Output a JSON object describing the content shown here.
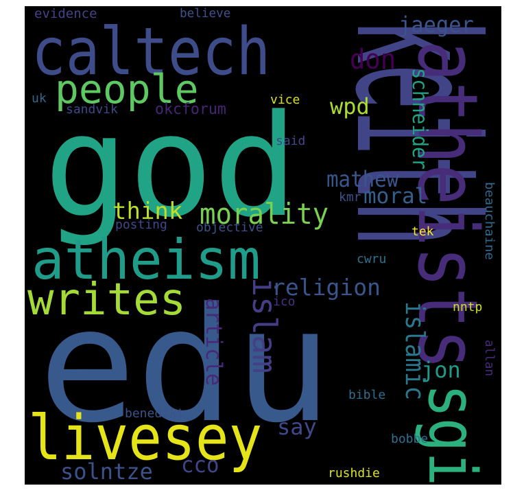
{
  "wordcloud": {
    "background_color": "#000000",
    "words": [
      {
        "text": "keith",
        "color": "#414487",
        "orientation": "vertical"
      },
      {
        "text": "god",
        "color": "#21a386",
        "orientation": "horizontal"
      },
      {
        "text": "edu",
        "color": "#38598c",
        "orientation": "horizontal"
      },
      {
        "text": "caltech",
        "color": "#3e4c8a",
        "orientation": "horizontal"
      },
      {
        "text": "sgi",
        "color": "#2cb17e",
        "orientation": "vertical"
      },
      {
        "text": "atheists",
        "color": "#472c7a",
        "orientation": "vertical"
      },
      {
        "text": "atheism",
        "color": "#1f9d8a",
        "orientation": "horizontal"
      },
      {
        "text": "livesey",
        "color": "#e5e419",
        "orientation": "horizontal"
      },
      {
        "text": "writes",
        "color": "#a5db36",
        "orientation": "horizontal"
      },
      {
        "text": "people",
        "color": "#5ec962",
        "orientation": "horizontal"
      },
      {
        "text": "morality",
        "color": "#7ad151",
        "orientation": "horizontal"
      },
      {
        "text": "islam",
        "color": "#433e85",
        "orientation": "vertical"
      },
      {
        "text": "religion",
        "color": "#39568c",
        "orientation": "horizontal"
      },
      {
        "text": "islamic",
        "color": "#2a788e",
        "orientation": "vertical"
      },
      {
        "text": "schneider",
        "color": "#20a486",
        "orientation": "vertical"
      },
      {
        "text": "don",
        "color": "#440154",
        "orientation": "horizontal"
      },
      {
        "text": "wpd",
        "color": "#addc30",
        "orientation": "horizontal"
      },
      {
        "text": "jaeger",
        "color": "#3b528b",
        "orientation": "horizontal"
      },
      {
        "text": "mathew",
        "color": "#39568c",
        "orientation": "horizontal"
      },
      {
        "text": "moral",
        "color": "#355f8d",
        "orientation": "horizontal"
      },
      {
        "text": "think",
        "color": "#bddf26",
        "orientation": "horizontal"
      },
      {
        "text": "article",
        "color": "#482878",
        "orientation": "vertical"
      },
      {
        "text": "say",
        "color": "#3e4989",
        "orientation": "horizontal"
      },
      {
        "text": "solntze",
        "color": "#3b528b",
        "orientation": "horizontal"
      },
      {
        "text": "cco",
        "color": "#414487",
        "orientation": "horizontal"
      },
      {
        "text": "jon",
        "color": "#1f9a8a",
        "orientation": "horizontal"
      },
      {
        "text": "okcforum",
        "color": "#482475",
        "orientation": "horizontal"
      },
      {
        "text": "evidence",
        "color": "#414487",
        "orientation": "horizontal"
      },
      {
        "text": "believe",
        "color": "#3b528b",
        "orientation": "horizontal"
      },
      {
        "text": "uk",
        "color": "#31688e",
        "orientation": "horizontal"
      },
      {
        "text": "sandvik",
        "color": "#3e4989",
        "orientation": "horizontal"
      },
      {
        "text": "vice",
        "color": "#d8e219",
        "orientation": "horizontal"
      },
      {
        "text": "said",
        "color": "#3e4989",
        "orientation": "horizontal"
      },
      {
        "text": "kmr",
        "color": "#3b528b",
        "orientation": "horizontal"
      },
      {
        "text": "posting",
        "color": "#3e4989",
        "orientation": "horizontal"
      },
      {
        "text": "objective",
        "color": "#3b528b",
        "orientation": "horizontal"
      },
      {
        "text": "tek",
        "color": "#fde725",
        "orientation": "horizontal"
      },
      {
        "text": "cwru",
        "color": "#2c728e",
        "orientation": "horizontal"
      },
      {
        "text": "beauchaine",
        "color": "#31688e",
        "orientation": "vertical"
      },
      {
        "text": "ico",
        "color": "#46337f",
        "orientation": "horizontal"
      },
      {
        "text": "nntp",
        "color": "#d0e11c",
        "orientation": "horizontal"
      },
      {
        "text": "allan",
        "color": "#482878",
        "orientation": "vertical"
      },
      {
        "text": "bible",
        "color": "#2e6e8e",
        "orientation": "horizontal"
      },
      {
        "text": "benedikt",
        "color": "#3b528b",
        "orientation": "horizontal"
      },
      {
        "text": "bobbe",
        "color": "#2c728e",
        "orientation": "horizontal"
      },
      {
        "text": "rushdie",
        "color": "#dde318",
        "orientation": "horizontal"
      }
    ]
  }
}
